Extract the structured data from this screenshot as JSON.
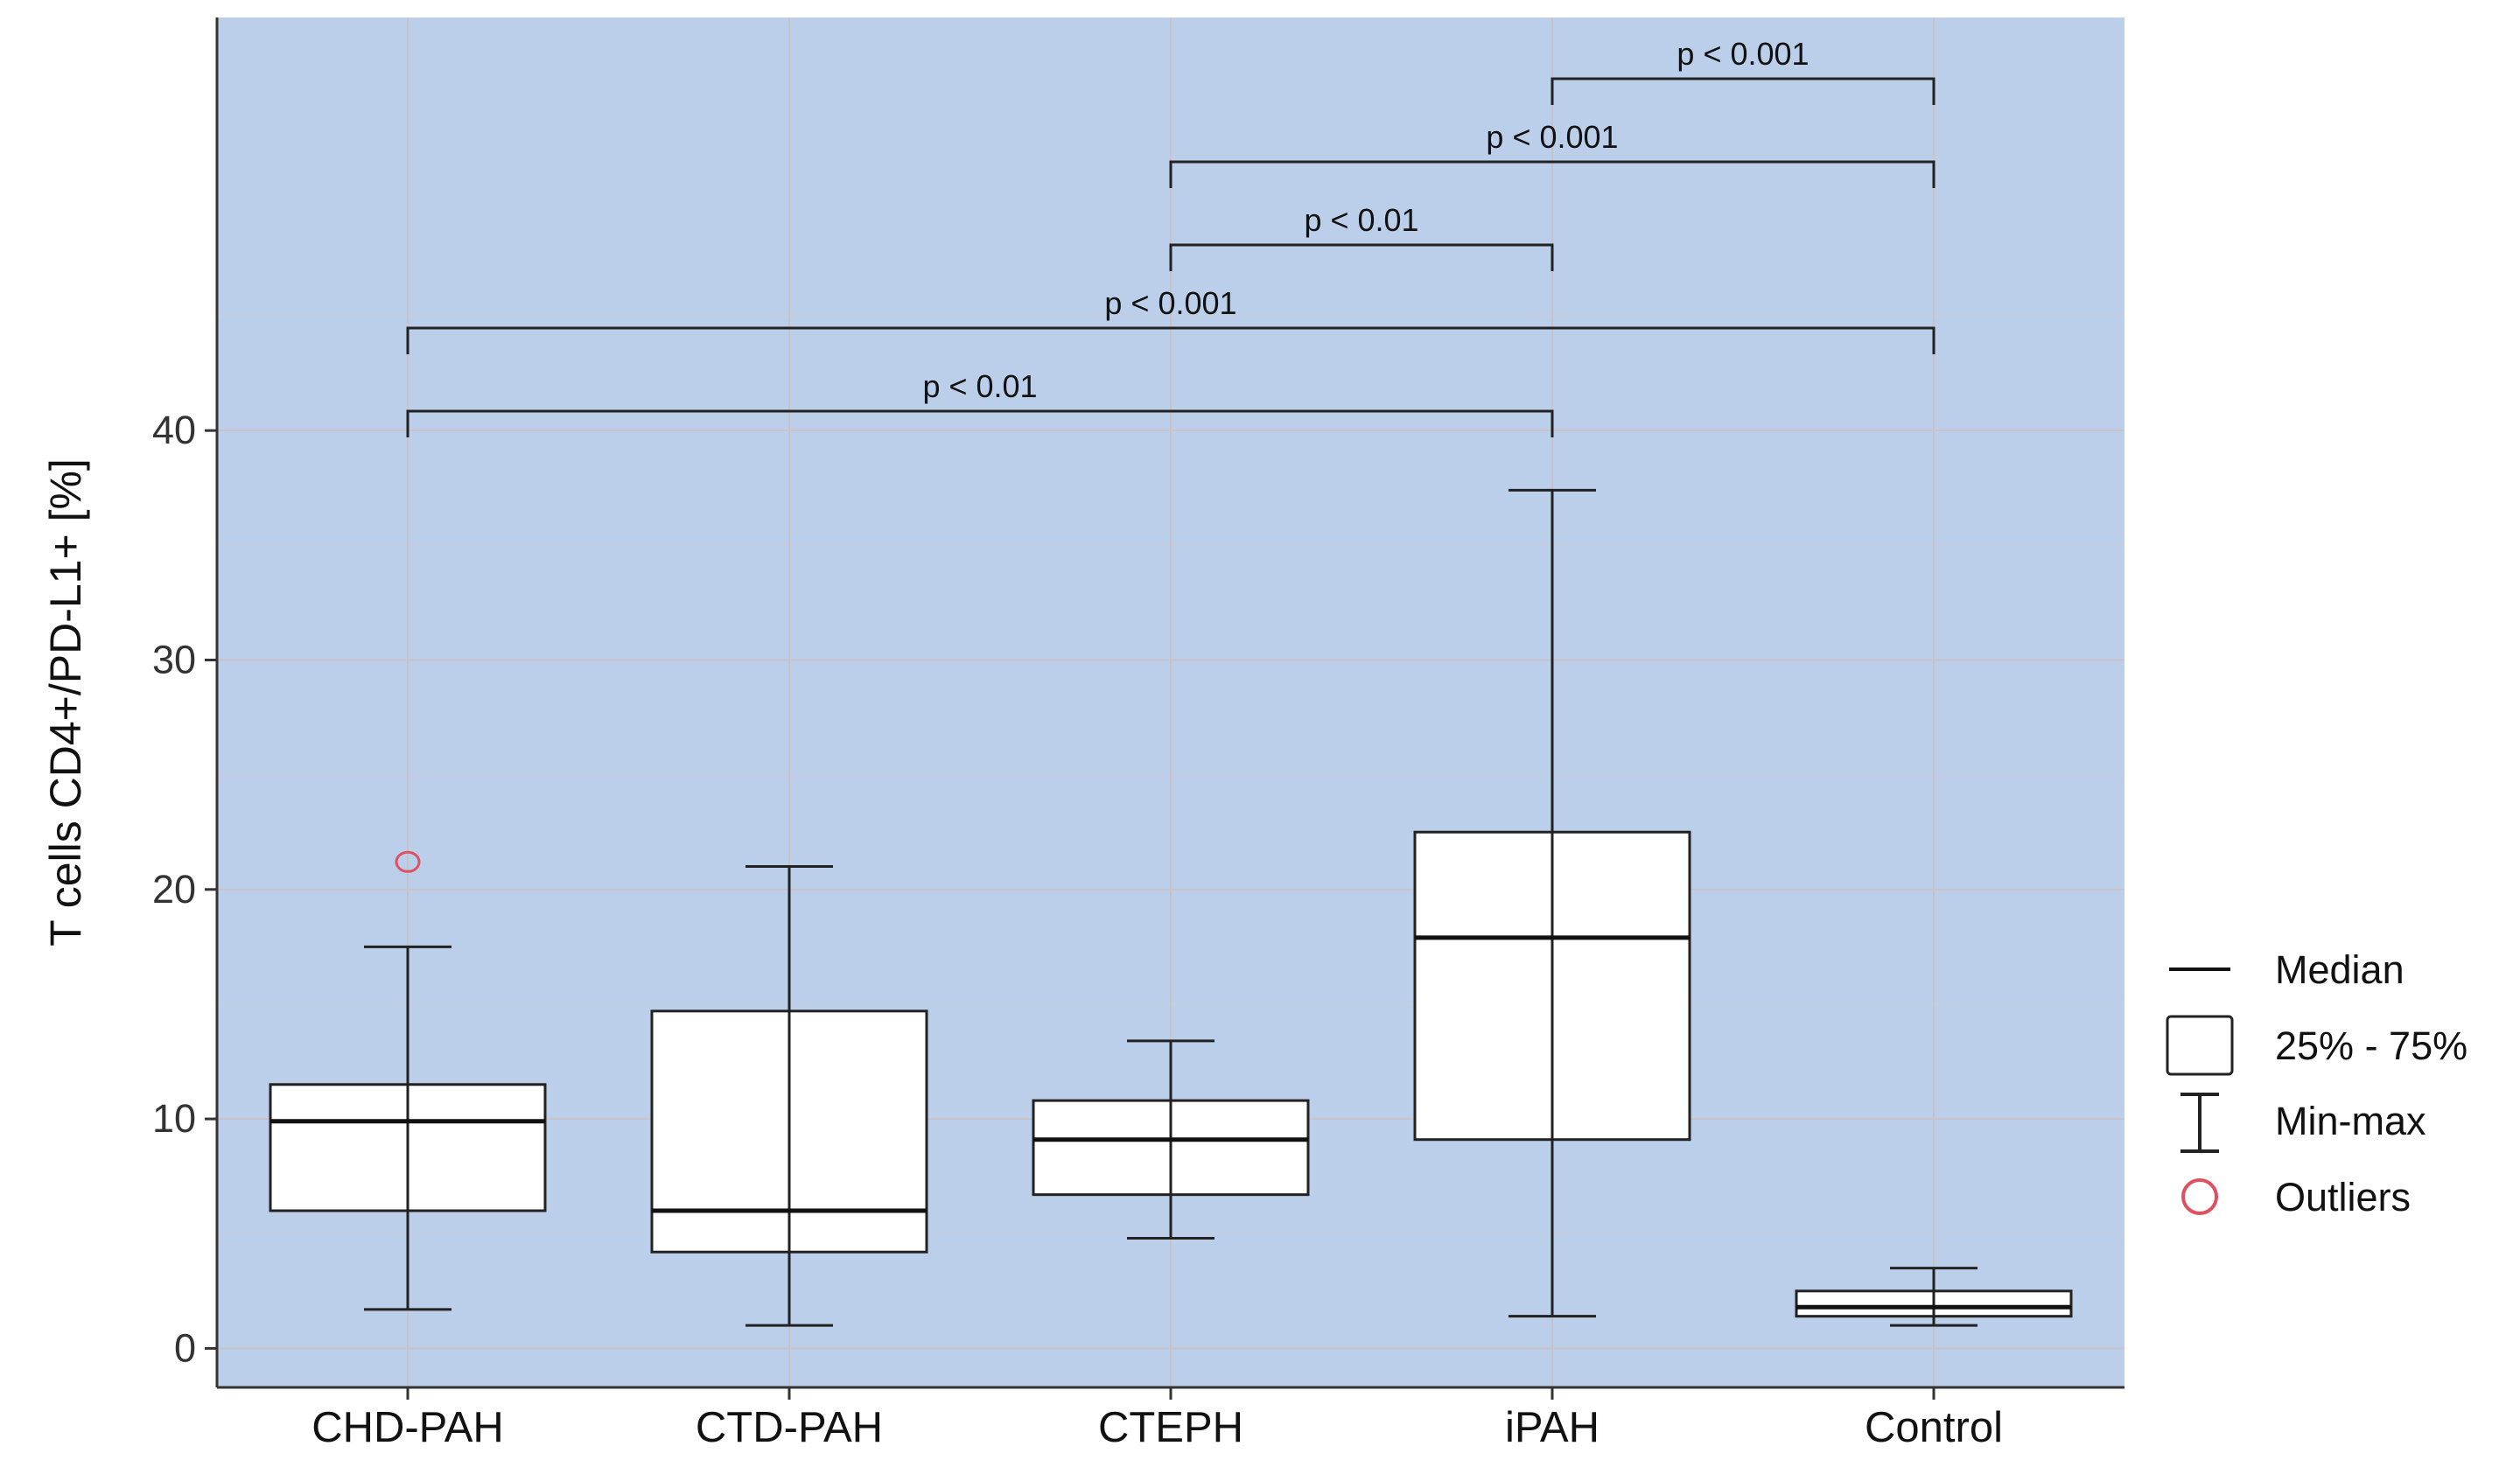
{
  "chart_data": {
    "type": "box",
    "ylabel": "T cells CD4+/PD-L1+ [%]",
    "xlabel": "",
    "ylim": [
      -1.7,
      58
    ],
    "yticks": [
      0,
      10,
      20,
      30,
      40
    ],
    "grid": true,
    "background_color": "#bccfea",
    "box_fill": "#ffffff",
    "line_color": "#222222",
    "outlier_color": "#e05060",
    "categories": [
      "CHD-PAH",
      "CTD-PAH",
      "CTEPH",
      "iPAH",
      "Control"
    ],
    "boxes": [
      {
        "category": "CHD-PAH",
        "min": 1.7,
        "q1": 6.0,
        "median": 9.9,
        "q3": 11.5,
        "max": 17.5,
        "outliers": [
          21.2
        ]
      },
      {
        "category": "CTD-PAH",
        "min": 1.0,
        "q1": 4.2,
        "median": 6.0,
        "q3": 14.7,
        "max": 21.0,
        "outliers": []
      },
      {
        "category": "CTEPH",
        "min": 4.8,
        "q1": 6.7,
        "median": 9.1,
        "q3": 10.8,
        "max": 13.4,
        "outliers": []
      },
      {
        "category": "iPAH",
        "min": 1.4,
        "q1": 9.1,
        "median": 17.9,
        "q3": 22.5,
        "max": 37.4,
        "outliers": []
      },
      {
        "category": "Control",
        "min": 1.0,
        "q1": 1.4,
        "median": 1.8,
        "q3": 2.5,
        "max": 3.5,
        "outliers": []
      }
    ],
    "comparisons": [
      {
        "from": "iPAH",
        "to": "Control",
        "label": "p < 0.001"
      },
      {
        "from": "CTEPH",
        "to": "Control",
        "label": "p < 0.001"
      },
      {
        "from": "CTEPH",
        "to": "iPAH",
        "label": "p < 0.01"
      },
      {
        "from": "CHD-PAH",
        "to": "Control",
        "label": "p < 0.001"
      },
      {
        "from": "CHD-PAH",
        "to": "iPAH",
        "label": "p < 0.01"
      }
    ],
    "legend": {
      "placement": "right",
      "items": [
        {
          "icon": "median-line-icon",
          "label": "Median"
        },
        {
          "icon": "box-icon",
          "label": "25% - 75%"
        },
        {
          "icon": "whisker-icon",
          "label": "Min-max"
        },
        {
          "icon": "outlier-circle-icon",
          "label": "Outliers"
        }
      ]
    }
  }
}
